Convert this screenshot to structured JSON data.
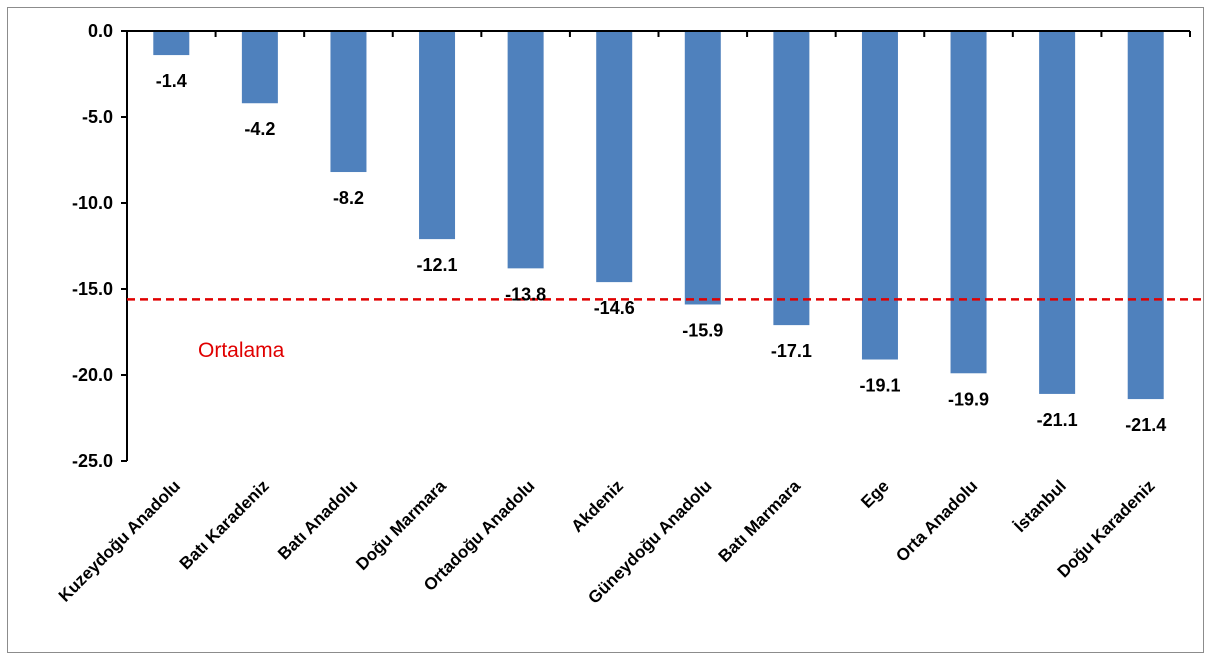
{
  "chart_data": {
    "type": "bar",
    "categories": [
      "Kuzeydoğu Anadolu",
      "Batı Karadeniz",
      "Batı Anadolu",
      "Doğu Marmara",
      "Ortadoğu Anadolu",
      "Akdeniz",
      "Güneydoğu Anadolu",
      "Batı Marmara",
      "Ege",
      "Orta Anadolu",
      "İstanbul",
      "Doğu Karadeniz"
    ],
    "values": [
      -1.4,
      -4.2,
      -8.2,
      -12.1,
      -13.8,
      -14.6,
      -15.9,
      -17.1,
      -19.1,
      -19.9,
      -21.1,
      -21.4
    ],
    "data_labels": [
      "-1.4",
      "-4.2",
      "-8.2",
      "-12.1",
      "-13.8",
      "-14.6",
      "-15.9",
      "-17.1",
      "-19.1",
      "-19.9",
      "-21.1",
      "-21.4"
    ],
    "ylim": [
      -25,
      0
    ],
    "yticks": [
      0,
      -5,
      -10,
      -15,
      -20,
      -25
    ],
    "ytick_labels": [
      "0.0",
      "-5.0",
      "-10.0",
      "-15.0",
      "-20.0",
      "-25.0"
    ],
    "average_line": {
      "value": -15.6,
      "label": "Ortalama",
      "color": "#e00000",
      "style": "dashed"
    },
    "bar_color": "#4f81bd",
    "title": "",
    "xlabel": "",
    "ylabel": "",
    "grid": false,
    "legend": "none"
  }
}
